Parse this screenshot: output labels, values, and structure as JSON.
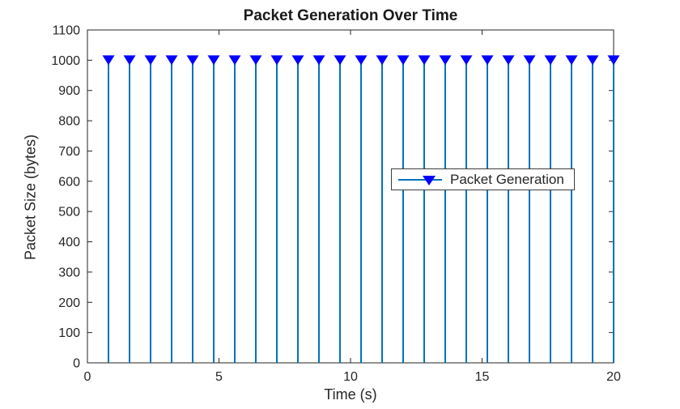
{
  "figure": {
    "background": "#ffffff"
  },
  "chart_data": {
    "type": "scatter",
    "subtype": "stem",
    "title": "Packet Generation Over Time",
    "xlabel": "Time (s)",
    "ylabel": "Packet Size (bytes)",
    "xlim": [
      0,
      20
    ],
    "ylim": [
      0,
      1100
    ],
    "xticks": [
      0,
      5,
      10,
      15,
      20
    ],
    "yticks": [
      0,
      100,
      200,
      300,
      400,
      500,
      600,
      700,
      800,
      900,
      1000,
      1100
    ],
    "grid": false,
    "box": true,
    "axis_color": "#262626",
    "legend": {
      "label": "Packet Generation",
      "position": "right-center"
    },
    "series": [
      {
        "name": "Packet Generation",
        "line_color": "#0072BD",
        "marker": "triangle-down",
        "marker_color": "#0000FF",
        "x": [
          0.8,
          1.6,
          2.4,
          3.2,
          4.0,
          4.8,
          5.6,
          6.4,
          7.2,
          8.0,
          8.8,
          9.6,
          10.4,
          11.2,
          12.0,
          12.8,
          13.6,
          14.4,
          15.2,
          16.0,
          16.8,
          17.6,
          18.4,
          19.2,
          20.0
        ],
        "y": [
          1000,
          1000,
          1000,
          1000,
          1000,
          1000,
          1000,
          1000,
          1000,
          1000,
          1000,
          1000,
          1000,
          1000,
          1000,
          1000,
          1000,
          1000,
          1000,
          1000,
          1000,
          1000,
          1000,
          1000,
          1000
        ]
      }
    ]
  }
}
